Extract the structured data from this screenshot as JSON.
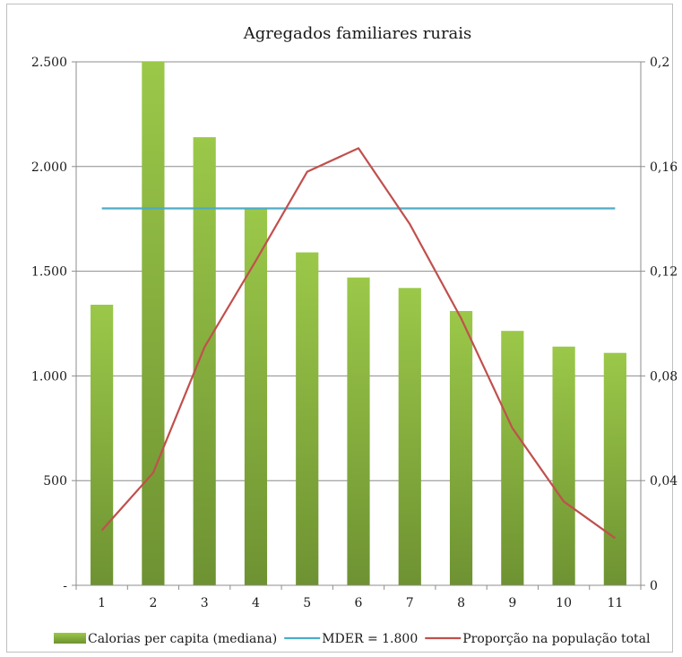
{
  "chart_data": {
    "type": "bar",
    "title": "Agregados familiares rurais",
    "categories": [
      "1",
      "2",
      "3",
      "4",
      "5",
      "6",
      "7",
      "8",
      "9",
      "10",
      "11"
    ],
    "series": [
      {
        "name": "Calorias per capita (mediana)",
        "type": "bar",
        "axis": "left",
        "color": "#8db43c",
        "values": [
          1340,
          2500,
          2140,
          1800,
          1590,
          1470,
          1420,
          1310,
          1215,
          1140,
          1110
        ]
      },
      {
        "name": "MDER = 1.800",
        "type": "line",
        "axis": "left",
        "color": "#4bacc6",
        "values": [
          1800,
          1800,
          1800,
          1800,
          1800,
          1800,
          1800,
          1800,
          1800,
          1800,
          1800
        ]
      },
      {
        "name": "Proporção na população total",
        "type": "line",
        "axis": "right",
        "color": "#c0504d",
        "values": [
          0.021,
          0.043,
          0.091,
          0.124,
          0.158,
          0.167,
          0.138,
          0.102,
          0.06,
          0.032,
          0.018
        ]
      }
    ],
    "y_left": {
      "ylim": [
        0,
        2500
      ],
      "ticks": [
        0,
        500,
        1000,
        1500,
        2000,
        2500
      ],
      "tick_labels": [
        "-",
        "500",
        "1.000",
        "1.500",
        "2.000",
        "2.500"
      ]
    },
    "y_right": {
      "ylim": [
        0,
        0.2
      ],
      "ticks": [
        0,
        0.04,
        0.08,
        0.12,
        0.16,
        0.2
      ],
      "tick_labels": [
        "0",
        "0,04",
        "0,08",
        "0,12",
        "0,16",
        "0,2"
      ]
    },
    "grid": true,
    "legend": "bottom"
  }
}
